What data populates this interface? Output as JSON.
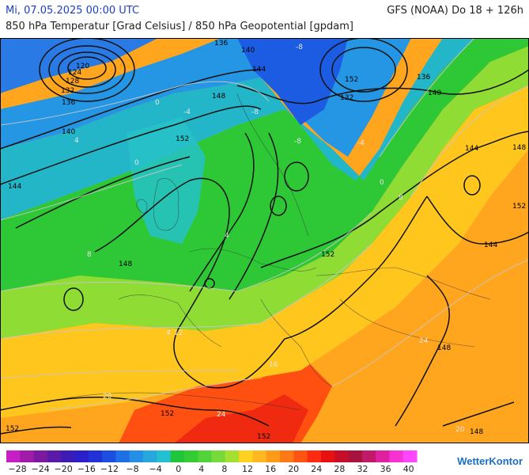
{
  "header": {
    "date": "Mi, 07.05.2025 00:00 UTC",
    "model": "GFS (NOAA) Do 18 + 126h",
    "title": "850 hPa Temperatur [Grad Celsius] / 850 hPa Geopotential [gpdam]"
  },
  "map": {
    "geopotential_labels": [
      "120",
      "124",
      "128",
      "132",
      "136",
      "140",
      "144",
      "148",
      "152",
      "136",
      "140",
      "144",
      "148",
      "152",
      "132",
      "136",
      "140",
      "144",
      "148",
      "152",
      "144",
      "148",
      "152",
      "152",
      "152",
      "148",
      "152"
    ],
    "temperature_labels": [
      "-8",
      "-8",
      "-8",
      "-4",
      "-4",
      "0",
      "0",
      "4",
      "4",
      "8",
      "8",
      "12",
      "16",
      "20",
      "20",
      "24",
      "24",
      "0",
      "4"
    ]
  },
  "legend": {
    "colors": [
      "#c51fc5",
      "#a01ba8",
      "#7b1aa0",
      "#5a1aa6",
      "#3c1cb5",
      "#2b1fc9",
      "#2232d6",
      "#1c4fe0",
      "#1f6fe6",
      "#2390e6",
      "#26a8df",
      "#22c0d0",
      "#1fc63a",
      "#33cc33",
      "#52d33a",
      "#77da3a",
      "#a4e031",
      "#ffd21f",
      "#ffb81f",
      "#ff9a18",
      "#ff7a14",
      "#ff5512",
      "#ff2a10",
      "#e81010",
      "#c60d2a",
      "#a8123f",
      "#c2186a",
      "#df20a0",
      "#f632d2",
      "#ff46ff"
    ],
    "ticks": [
      "−28",
      "−24",
      "−20",
      "−16",
      "−12",
      "−8",
      "−4",
      "0",
      "4",
      "8",
      "12",
      "16",
      "20",
      "24",
      "28",
      "32",
      "36",
      "40"
    ]
  },
  "brand": {
    "name": "WetterKontor"
  }
}
